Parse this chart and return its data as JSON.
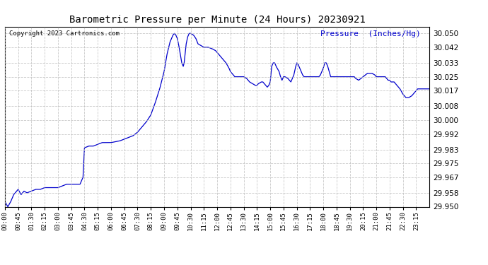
{
  "title": "Barometric Pressure per Minute (24 Hours) 20230921",
  "copyright": "Copyright 2023 Cartronics.com",
  "ylabel": "Pressure  (Inches/Hg)",
  "line_color": "#0000cc",
  "bg_color": "#ffffff",
  "grid_color": "#bbbbbb",
  "ylim": [
    29.95,
    30.054
  ],
  "yticks": [
    29.95,
    29.958,
    29.967,
    29.975,
    29.983,
    29.992,
    30.0,
    30.008,
    30.017,
    30.025,
    30.033,
    30.042,
    30.05
  ],
  "xtick_labels": [
    "00:00",
    "00:45",
    "01:30",
    "02:15",
    "03:00",
    "03:45",
    "04:30",
    "05:15",
    "06:00",
    "06:45",
    "07:30",
    "08:15",
    "09:00",
    "09:45",
    "10:30",
    "11:15",
    "12:00",
    "12:45",
    "13:30",
    "14:15",
    "15:00",
    "15:45",
    "16:30",
    "17:15",
    "18:00",
    "18:45",
    "19:30",
    "20:15",
    "21:00",
    "21:45",
    "22:30",
    "23:15"
  ],
  "control_points": [
    [
      0,
      29.953
    ],
    [
      10,
      29.95
    ],
    [
      20,
      29.953
    ],
    [
      30,
      29.957
    ],
    [
      45,
      29.96
    ],
    [
      55,
      29.957
    ],
    [
      65,
      29.959
    ],
    [
      75,
      29.958
    ],
    [
      90,
      29.959
    ],
    [
      105,
      29.96
    ],
    [
      120,
      29.96
    ],
    [
      135,
      29.961
    ],
    [
      150,
      29.961
    ],
    [
      165,
      29.961
    ],
    [
      180,
      29.961
    ],
    [
      195,
      29.962
    ],
    [
      210,
      29.963
    ],
    [
      220,
      29.963
    ],
    [
      230,
      29.963
    ],
    [
      240,
      29.963
    ],
    [
      255,
      29.963
    ],
    [
      265,
      29.967
    ],
    [
      270,
      29.984
    ],
    [
      285,
      29.985
    ],
    [
      300,
      29.985
    ],
    [
      315,
      29.986
    ],
    [
      330,
      29.987
    ],
    [
      360,
      29.987
    ],
    [
      390,
      29.988
    ],
    [
      405,
      29.989
    ],
    [
      420,
      29.99
    ],
    [
      435,
      29.991
    ],
    [
      450,
      29.993
    ],
    [
      465,
      29.996
    ],
    [
      480,
      29.999
    ],
    [
      495,
      30.003
    ],
    [
      510,
      30.01
    ],
    [
      525,
      30.018
    ],
    [
      540,
      30.028
    ],
    [
      550,
      30.038
    ],
    [
      560,
      30.045
    ],
    [
      570,
      30.049
    ],
    [
      575,
      30.05
    ],
    [
      580,
      30.049
    ],
    [
      585,
      30.047
    ],
    [
      590,
      30.043
    ],
    [
      595,
      30.038
    ],
    [
      600,
      30.033
    ],
    [
      605,
      30.031
    ],
    [
      608,
      30.033
    ],
    [
      615,
      30.044
    ],
    [
      620,
      30.048
    ],
    [
      625,
      30.05
    ],
    [
      630,
      30.05
    ],
    [
      640,
      30.049
    ],
    [
      648,
      30.047
    ],
    [
      655,
      30.044
    ],
    [
      665,
      30.043
    ],
    [
      675,
      30.042
    ],
    [
      690,
      30.042
    ],
    [
      705,
      30.041
    ],
    [
      715,
      30.04
    ],
    [
      720,
      30.039
    ],
    [
      730,
      30.037
    ],
    [
      740,
      30.035
    ],
    [
      750,
      30.033
    ],
    [
      760,
      30.03
    ],
    [
      765,
      30.028
    ],
    [
      775,
      30.026
    ],
    [
      780,
      30.025
    ],
    [
      795,
      30.025
    ],
    [
      810,
      30.025
    ],
    [
      820,
      30.024
    ],
    [
      825,
      30.023
    ],
    [
      830,
      30.022
    ],
    [
      840,
      30.021
    ],
    [
      850,
      30.02
    ],
    [
      855,
      30.02
    ],
    [
      860,
      30.021
    ],
    [
      870,
      30.022
    ],
    [
      875,
      30.022
    ],
    [
      885,
      30.02
    ],
    [
      890,
      30.019
    ],
    [
      895,
      30.02
    ],
    [
      900,
      30.022
    ],
    [
      905,
      30.031
    ],
    [
      910,
      30.033
    ],
    [
      915,
      30.033
    ],
    [
      920,
      30.031
    ],
    [
      930,
      30.028
    ],
    [
      935,
      30.025
    ],
    [
      940,
      30.023
    ],
    [
      945,
      30.025
    ],
    [
      950,
      30.025
    ],
    [
      960,
      30.024
    ],
    [
      965,
      30.023
    ],
    [
      970,
      30.022
    ],
    [
      975,
      30.024
    ],
    [
      980,
      30.026
    ],
    [
      985,
      30.03
    ],
    [
      990,
      30.033
    ],
    [
      995,
      30.032
    ],
    [
      1000,
      30.03
    ],
    [
      1005,
      30.028
    ],
    [
      1010,
      30.026
    ],
    [
      1015,
      30.025
    ],
    [
      1020,
      30.025
    ],
    [
      1025,
      30.025
    ],
    [
      1030,
      30.025
    ],
    [
      1035,
      30.025
    ],
    [
      1040,
      30.025
    ],
    [
      1045,
      30.025
    ],
    [
      1050,
      30.025
    ],
    [
      1055,
      30.025
    ],
    [
      1060,
      30.025
    ],
    [
      1065,
      30.025
    ],
    [
      1070,
      30.026
    ],
    [
      1075,
      30.028
    ],
    [
      1080,
      30.03
    ],
    [
      1085,
      30.033
    ],
    [
      1090,
      30.033
    ],
    [
      1095,
      30.031
    ],
    [
      1100,
      30.028
    ],
    [
      1105,
      30.025
    ],
    [
      1110,
      30.025
    ],
    [
      1115,
      30.025
    ],
    [
      1120,
      30.025
    ],
    [
      1125,
      30.025
    ],
    [
      1130,
      30.025
    ],
    [
      1135,
      30.025
    ],
    [
      1140,
      30.025
    ],
    [
      1145,
      30.025
    ],
    [
      1150,
      30.025
    ],
    [
      1155,
      30.025
    ],
    [
      1160,
      30.025
    ],
    [
      1165,
      30.025
    ],
    [
      1170,
      30.025
    ],
    [
      1175,
      30.025
    ],
    [
      1180,
      30.025
    ],
    [
      1185,
      30.025
    ],
    [
      1190,
      30.024
    ],
    [
      1200,
      30.023
    ],
    [
      1215,
      30.025
    ],
    [
      1230,
      30.027
    ],
    [
      1245,
      30.027
    ],
    [
      1255,
      30.026
    ],
    [
      1260,
      30.025
    ],
    [
      1275,
      30.025
    ],
    [
      1280,
      30.025
    ],
    [
      1285,
      30.025
    ],
    [
      1290,
      30.025
    ],
    [
      1295,
      30.024
    ],
    [
      1300,
      30.023
    ],
    [
      1305,
      30.023
    ],
    [
      1310,
      30.022
    ],
    [
      1320,
      30.022
    ],
    [
      1330,
      30.02
    ],
    [
      1340,
      30.018
    ],
    [
      1350,
      30.015
    ],
    [
      1355,
      30.014
    ],
    [
      1360,
      30.013
    ],
    [
      1370,
      30.013
    ],
    [
      1380,
      30.014
    ],
    [
      1390,
      30.016
    ],
    [
      1395,
      30.017
    ],
    [
      1400,
      30.018
    ],
    [
      1410,
      30.018
    ],
    [
      1440,
      30.018
    ]
  ]
}
